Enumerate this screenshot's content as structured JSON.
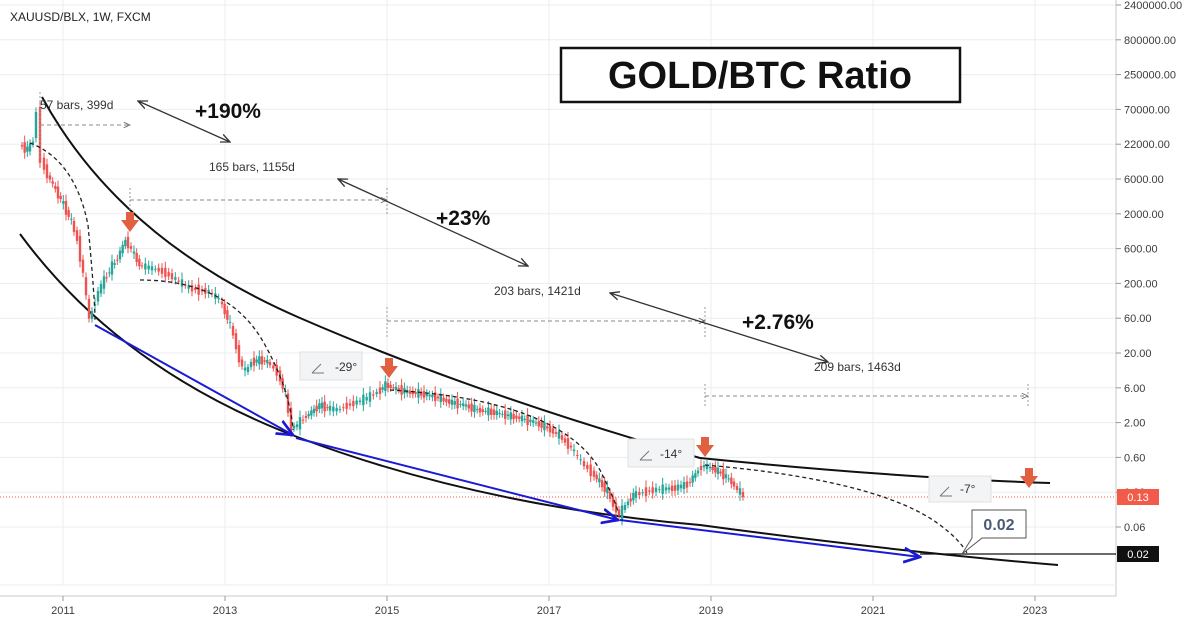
{
  "symbol": "XAUUSD/BLX, 1W, FXCM",
  "chart_data": {
    "type": "candlestick",
    "title": "GOLD/BTC Ratio",
    "x_ticks": [
      "2011",
      "2013",
      "2015",
      "2017",
      "2019",
      "2021",
      "2023"
    ],
    "y_scale": "log",
    "y_ticks": [
      "2400000.00",
      "800000.00",
      "250000.00",
      "70000.00",
      "22000.00",
      "6000.00",
      "2000.00",
      "600.00",
      "200.00",
      "60.00",
      "20.00",
      "6.00",
      "2.00",
      "0.60",
      "0.20",
      "0.06"
    ],
    "current_price_label": "0.13",
    "target_label": "0.02",
    "target_callout": "0.02",
    "measurements": [
      {
        "text": "57 bars, 399d"
      },
      {
        "text": "165 bars, 1155d"
      },
      {
        "text": "203 bars, 1421d"
      },
      {
        "text": "209 bars, 1463d"
      }
    ],
    "percent_labels": [
      "+190%",
      "+23%",
      "+2.76%"
    ],
    "angles": [
      "-29°",
      "-14°",
      "-7°"
    ],
    "peak_markers": 4,
    "colors": {
      "up": "#26a69a",
      "down": "#ef5350",
      "support_arrows": "#1a1ad6",
      "curves": "#111111",
      "markers": "#e06040",
      "price_line": "#f25a4a"
    }
  }
}
